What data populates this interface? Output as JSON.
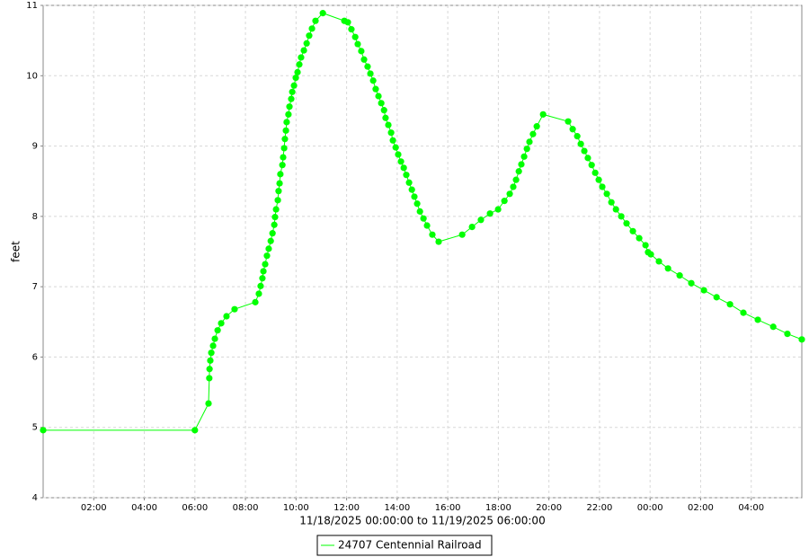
{
  "chart_data": {
    "type": "line",
    "xlabel": "11/18/2025 00:00:00 to 11/19/2025 06:00:00",
    "ylabel": "feet",
    "xlim": [
      0,
      30
    ],
    "ylim": [
      4,
      11
    ],
    "xticks": [
      {
        "value": 2,
        "label": "02:00"
      },
      {
        "value": 4,
        "label": "04:00"
      },
      {
        "value": 6,
        "label": "06:00"
      },
      {
        "value": 8,
        "label": "08:00"
      },
      {
        "value": 10,
        "label": "10:00"
      },
      {
        "value": 12,
        "label": "12:00"
      },
      {
        "value": 14,
        "label": "14:00"
      },
      {
        "value": 16,
        "label": "16:00"
      },
      {
        "value": 18,
        "label": "18:00"
      },
      {
        "value": 20,
        "label": "20:00"
      },
      {
        "value": 22,
        "label": "22:00"
      },
      {
        "value": 24,
        "label": "00:00"
      },
      {
        "value": 26,
        "label": "02:00"
      },
      {
        "value": 28,
        "label": "04:00"
      }
    ],
    "yticks": [
      4,
      5,
      6,
      7,
      8,
      9,
      10,
      11
    ],
    "grid": true,
    "legend": "bottom",
    "x": [
      0,
      6.0,
      6.54,
      6.57,
      6.58,
      6.61,
      6.65,
      6.72,
      6.79,
      6.9,
      7.04,
      7.25,
      7.57,
      8.39,
      8.53,
      8.6,
      8.67,
      8.71,
      8.78,
      8.85,
      8.92,
      9.0,
      9.07,
      9.14,
      9.17,
      9.21,
      9.28,
      9.31,
      9.35,
      9.38,
      9.46,
      9.49,
      9.53,
      9.56,
      9.6,
      9.63,
      9.7,
      9.74,
      9.81,
      9.85,
      9.92,
      9.99,
      10.06,
      10.13,
      10.2,
      10.31,
      10.42,
      10.52,
      10.63,
      10.77,
      11.06,
      11.91,
      12.05,
      12.19,
      12.34,
      12.44,
      12.58,
      12.69,
      12.83,
      12.94,
      13.05,
      13.15,
      13.26,
      13.37,
      13.48,
      13.54,
      13.65,
      13.76,
      13.83,
      13.94,
      14.04,
      14.15,
      14.26,
      14.36,
      14.47,
      14.58,
      14.68,
      14.79,
      14.9,
      15.04,
      15.18,
      15.39,
      15.64,
      16.57,
      16.96,
      17.31,
      17.67,
      17.99,
      18.24,
      18.45,
      18.59,
      18.7,
      18.81,
      18.91,
      19.02,
      19.13,
      19.23,
      19.37,
      19.52,
      19.77,
      20.76,
      20.94,
      21.12,
      21.26,
      21.4,
      21.54,
      21.69,
      21.83,
      21.97,
      22.11,
      22.29,
      22.47,
      22.65,
      22.86,
      23.07,
      23.32,
      23.57,
      23.82,
      23.92,
      24.03,
      24.35,
      24.71,
      25.17,
      25.63,
      26.13,
      26.63,
      27.16,
      27.69,
      28.26,
      28.87,
      29.43,
      30.0
    ],
    "series": [
      {
        "name": "24707 Centennial Railroad",
        "color": "#00ff00",
        "values": [
          4.96,
          4.96,
          5.34,
          5.7,
          5.83,
          5.95,
          6.06,
          6.16,
          6.26,
          6.38,
          6.48,
          6.58,
          6.68,
          6.78,
          6.9,
          7.01,
          7.12,
          7.22,
          7.32,
          7.44,
          7.54,
          7.65,
          7.76,
          7.88,
          7.99,
          8.1,
          8.23,
          8.36,
          8.47,
          8.6,
          8.73,
          8.84,
          8.97,
          9.1,
          9.22,
          9.34,
          9.45,
          9.56,
          9.67,
          9.77,
          9.86,
          9.97,
          10.05,
          10.16,
          10.26,
          10.36,
          10.46,
          10.57,
          10.67,
          10.78,
          10.89,
          10.78,
          10.76,
          10.66,
          10.55,
          10.45,
          10.35,
          10.23,
          10.13,
          10.03,
          9.93,
          9.81,
          9.71,
          9.61,
          9.51,
          9.4,
          9.3,
          9.19,
          9.08,
          8.98,
          8.88,
          8.78,
          8.69,
          8.59,
          8.48,
          8.38,
          8.28,
          8.18,
          8.07,
          7.97,
          7.87,
          7.74,
          7.64,
          7.74,
          7.85,
          7.95,
          8.04,
          8.1,
          8.22,
          8.32,
          8.42,
          8.52,
          8.64,
          8.74,
          8.85,
          8.96,
          9.06,
          9.17,
          9.28,
          9.45,
          9.35,
          9.24,
          9.14,
          9.03,
          8.93,
          8.83,
          8.73,
          8.62,
          8.52,
          8.42,
          8.32,
          8.2,
          8.1,
          8.0,
          7.9,
          7.79,
          7.69,
          7.59,
          7.49,
          7.46,
          7.36,
          7.26,
          7.16,
          7.05,
          6.95,
          6.85,
          6.75,
          6.63,
          6.53,
          6.43,
          6.33,
          6.25
        ]
      }
    ]
  }
}
